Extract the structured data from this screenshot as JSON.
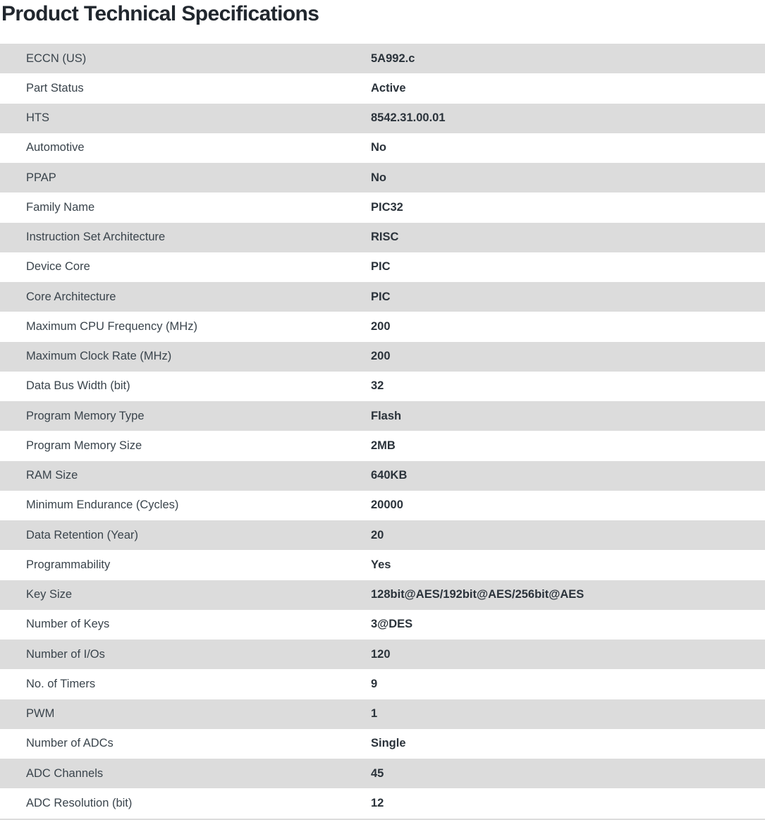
{
  "page": {
    "title": "Product Technical Specifications"
  },
  "table": {
    "rows": [
      {
        "label": "ECCN (US)",
        "value": "5A992.c"
      },
      {
        "label": "Part Status",
        "value": "Active"
      },
      {
        "label": "HTS",
        "value": "8542.31.00.01"
      },
      {
        "label": "Automotive",
        "value": "No"
      },
      {
        "label": "PPAP",
        "value": "No"
      },
      {
        "label": "Family Name",
        "value": "PIC32"
      },
      {
        "label": "Instruction Set Architecture",
        "value": "RISC"
      },
      {
        "label": "Device Core",
        "value": "PIC"
      },
      {
        "label": "Core Architecture",
        "value": "PIC"
      },
      {
        "label": "Maximum CPU Frequency (MHz)",
        "value": "200"
      },
      {
        "label": "Maximum Clock Rate (MHz)",
        "value": "200"
      },
      {
        "label": "Data Bus Width (bit)",
        "value": "32"
      },
      {
        "label": "Program Memory Type",
        "value": "Flash"
      },
      {
        "label": "Program Memory Size",
        "value": "2MB"
      },
      {
        "label": "RAM Size",
        "value": "640KB"
      },
      {
        "label": "Minimum Endurance (Cycles)",
        "value": "20000"
      },
      {
        "label": "Data Retention (Year)",
        "value": "20"
      },
      {
        "label": "Programmability",
        "value": "Yes"
      },
      {
        "label": "Key Size",
        "value": "128bit@AES/192bit@AES/256bit@AES"
      },
      {
        "label": "Number of Keys",
        "value": "3@DES"
      },
      {
        "label": "Number of I/Os",
        "value": "120"
      },
      {
        "label": "No. of Timers",
        "value": "9"
      },
      {
        "label": "PWM",
        "value": "1"
      },
      {
        "label": "Number of ADCs",
        "value": "Single"
      },
      {
        "label": "ADC Channels",
        "value": "45"
      },
      {
        "label": "ADC Resolution (bit)",
        "value": "12"
      }
    ]
  },
  "colors": {
    "row_stripe": "#dcdcdc",
    "label_text": "#3a444c",
    "value_text": "#2b333b",
    "title_text": "#21272e",
    "background": "#ffffff"
  }
}
